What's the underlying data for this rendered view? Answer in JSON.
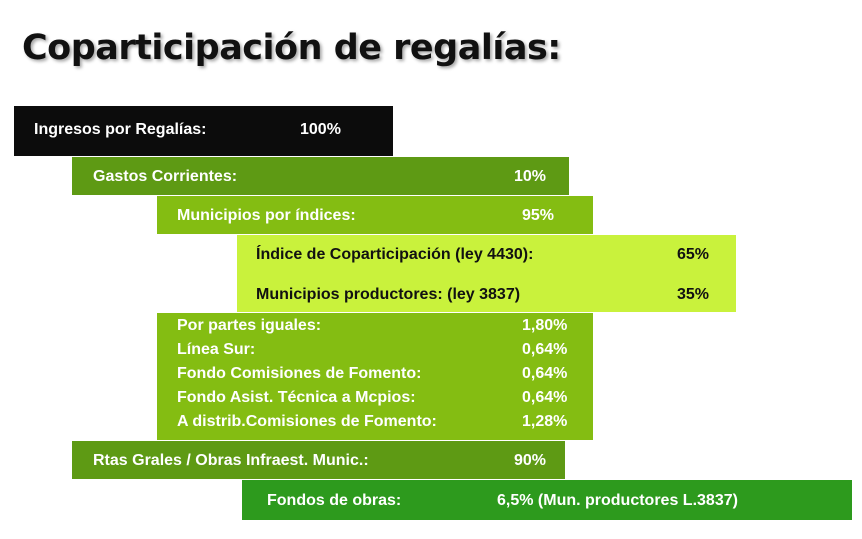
{
  "title": "Coparticipación de regalías:",
  "colors": {
    "black": "#0c0c0c",
    "dark_green": "#5e9a14",
    "mid_green": "#84bd12",
    "light_green": "#c9f23c",
    "bright_green": "#2d9a1d"
  },
  "rows": {
    "ingresos": {
      "label": "Ingresos por Regalías:",
      "value": "100%"
    },
    "gastos": {
      "label": "Gastos Corrientes:",
      "value": "10%"
    },
    "municipios_indices": {
      "label": "Municipios por índices:",
      "value": "95%"
    },
    "indice_coparticipacion": {
      "label": "Índice de Coparticipación (ley 4430):",
      "value": "65%"
    },
    "municipios_productores": {
      "label": "Municipios productores: (ley 3837)",
      "value": "35%"
    },
    "partes_iguales": {
      "label": "Por partes iguales:",
      "value": "1,80%"
    },
    "linea_sur": {
      "label": "Línea Sur:",
      "value": "0,64%"
    },
    "fondo_comisiones": {
      "label": "Fondo Comisiones de Fomento:",
      "value": "0,64%"
    },
    "fondo_asist": {
      "label": "Fondo Asist. Técnica a Mcpios:",
      "value": "0,64%"
    },
    "a_distrib": {
      "label": "A distrib.Comisiones de Fomento:",
      "value": "1,28%"
    },
    "rtas_grales": {
      "label": "Rtas Grales / Obras Infraest. Munic.:",
      "value": "90%"
    },
    "fondos_obras": {
      "label": "Fondos de obras:",
      "value": "6,5% (Mun. productores L.3837)"
    }
  }
}
